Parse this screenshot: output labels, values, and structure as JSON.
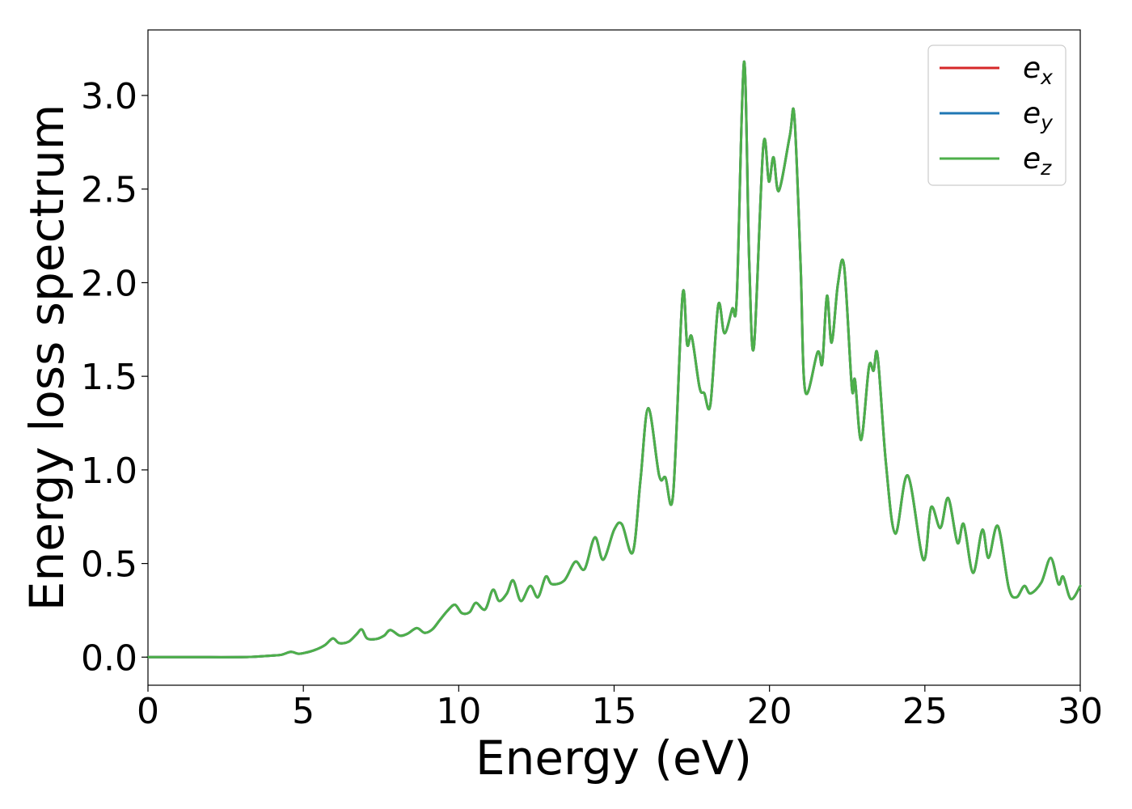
{
  "chart_data": {
    "type": "line",
    "xlabel": "Energy (eV)",
    "ylabel": "Energy loss spectrum",
    "xlim": [
      0,
      30
    ],
    "ylim": [
      -0.15,
      3.35
    ],
    "xticks": [
      "0",
      "5",
      "10",
      "15",
      "20",
      "25",
      "30"
    ],
    "yticks": [
      "0.0",
      "0.5",
      "1.0",
      "1.5",
      "2.0",
      "2.5",
      "3.0"
    ],
    "grid": false,
    "legend_position": "top-right",
    "series": [
      {
        "name": "e",
        "subscript": "x",
        "color": "#d62728"
      },
      {
        "name": "e",
        "subscript": "y",
        "color": "#1f77b4"
      },
      {
        "name": "e",
        "subscript": "z",
        "color": "#4daf4a"
      }
    ],
    "points": [
      [
        0.0,
        0.0
      ],
      [
        1.0,
        0.0
      ],
      [
        2.0,
        0.0
      ],
      [
        3.0,
        0.0
      ],
      [
        3.5,
        0.003
      ],
      [
        4.0,
        0.008
      ],
      [
        4.3,
        0.013
      ],
      [
        4.6,
        0.028
      ],
      [
        4.85,
        0.018
      ],
      [
        5.1,
        0.025
      ],
      [
        5.4,
        0.04
      ],
      [
        5.7,
        0.065
      ],
      [
        5.95,
        0.1
      ],
      [
        6.15,
        0.075
      ],
      [
        6.45,
        0.082
      ],
      [
        6.7,
        0.12
      ],
      [
        6.88,
        0.148
      ],
      [
        7.05,
        0.1
      ],
      [
        7.35,
        0.097
      ],
      [
        7.6,
        0.115
      ],
      [
        7.8,
        0.145
      ],
      [
        8.1,
        0.115
      ],
      [
        8.35,
        0.125
      ],
      [
        8.65,
        0.155
      ],
      [
        8.9,
        0.13
      ],
      [
        9.15,
        0.148
      ],
      [
        9.4,
        0.2
      ],
      [
        9.65,
        0.25
      ],
      [
        9.88,
        0.28
      ],
      [
        10.1,
        0.235
      ],
      [
        10.35,
        0.24
      ],
      [
        10.55,
        0.29
      ],
      [
        10.85,
        0.255
      ],
      [
        11.1,
        0.36
      ],
      [
        11.3,
        0.3
      ],
      [
        11.55,
        0.34
      ],
      [
        11.75,
        0.41
      ],
      [
        12.0,
        0.3
      ],
      [
        12.3,
        0.38
      ],
      [
        12.55,
        0.32
      ],
      [
        12.8,
        0.43
      ],
      [
        13.0,
        0.39
      ],
      [
        13.4,
        0.41
      ],
      [
        13.75,
        0.51
      ],
      [
        14.05,
        0.47
      ],
      [
        14.38,
        0.64
      ],
      [
        14.65,
        0.52
      ],
      [
        15.0,
        0.68
      ],
      [
        15.25,
        0.71
      ],
      [
        15.6,
        0.56
      ],
      [
        15.85,
        0.95
      ],
      [
        16.1,
        1.33
      ],
      [
        16.45,
        0.97
      ],
      [
        16.65,
        0.96
      ],
      [
        16.9,
        0.87
      ],
      [
        17.2,
        1.93
      ],
      [
        17.35,
        1.67
      ],
      [
        17.5,
        1.71
      ],
      [
        17.75,
        1.44
      ],
      [
        17.9,
        1.41
      ],
      [
        18.1,
        1.35
      ],
      [
        18.35,
        1.88
      ],
      [
        18.55,
        1.73
      ],
      [
        18.8,
        1.86
      ],
      [
        18.95,
        1.93
      ],
      [
        19.18,
        3.18
      ],
      [
        19.35,
        2.1
      ],
      [
        19.5,
        1.66
      ],
      [
        19.8,
        2.73
      ],
      [
        19.98,
        2.54
      ],
      [
        20.13,
        2.67
      ],
      [
        20.3,
        2.49
      ],
      [
        20.65,
        2.78
      ],
      [
        20.8,
        2.89
      ],
      [
        21.0,
        2.1
      ],
      [
        21.15,
        1.42
      ],
      [
        21.55,
        1.63
      ],
      [
        21.7,
        1.57
      ],
      [
        21.85,
        1.93
      ],
      [
        22.0,
        1.68
      ],
      [
        22.2,
        1.99
      ],
      [
        22.4,
        2.09
      ],
      [
        22.65,
        1.44
      ],
      [
        22.75,
        1.48
      ],
      [
        22.95,
        1.16
      ],
      [
        23.2,
        1.55
      ],
      [
        23.35,
        1.53
      ],
      [
        23.48,
        1.61
      ],
      [
        23.75,
        1.03
      ],
      [
        24.05,
        0.66
      ],
      [
        24.45,
        0.97
      ],
      [
        24.95,
        0.52
      ],
      [
        25.2,
        0.8
      ],
      [
        25.5,
        0.69
      ],
      [
        25.75,
        0.85
      ],
      [
        26.05,
        0.61
      ],
      [
        26.25,
        0.71
      ],
      [
        26.55,
        0.45
      ],
      [
        26.85,
        0.68
      ],
      [
        27.05,
        0.53
      ],
      [
        27.35,
        0.7
      ],
      [
        27.7,
        0.37
      ],
      [
        27.95,
        0.32
      ],
      [
        28.2,
        0.38
      ],
      [
        28.4,
        0.34
      ],
      [
        28.75,
        0.4
      ],
      [
        29.05,
        0.53
      ],
      [
        29.3,
        0.39
      ],
      [
        29.45,
        0.43
      ],
      [
        29.7,
        0.31
      ],
      [
        30.0,
        0.38
      ]
    ]
  }
}
